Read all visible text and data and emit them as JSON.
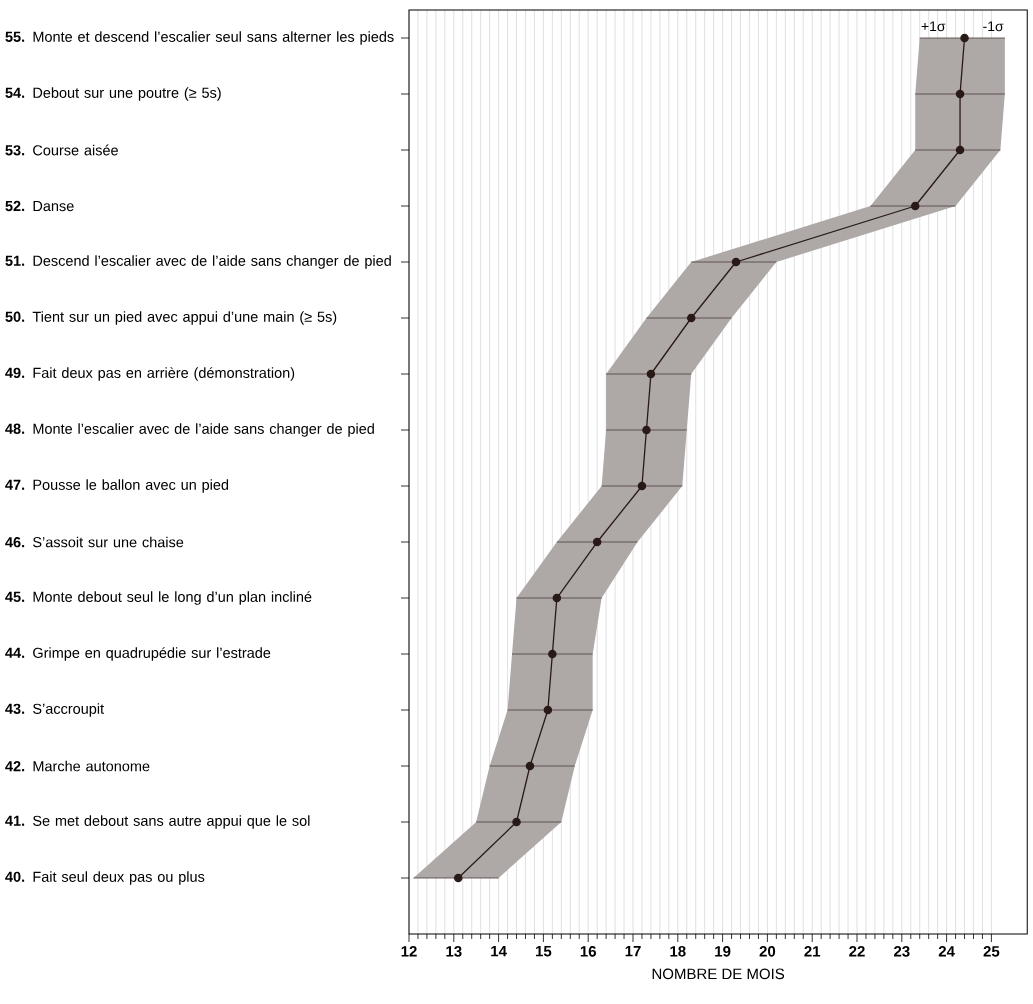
{
  "chart_data": {
    "type": "line",
    "orientation": "horizontal",
    "xlabel": "NOMBRE DE MOIS",
    "categories": [
      "**55.** Monte et descend l’escalier seul sans alterner les pieds",
      "**54.** Debout sur une poutre (≥ 5s)",
      "**53.** Course aisée",
      "**52.** Danse",
      "**51.** Descend l’escalier avec de l’aide sans changer de pied",
      "**50.** Tient sur un pied avec appui d’une main (≥ 5s)",
      "**49.** Fait deux pas en arrière (démonstration)",
      "**48.** Monte l’escalier avec de l’aide sans changer de pied",
      "**47.** Pousse le ballon avec un pied",
      "**46.** S’assoit sur une chaise",
      "**45.** Monte debout seul le long d’un plan incliné",
      "**44.** Grimpe en quadrupédie sur l’estrade",
      "**43.** S’accroupit",
      "**42.** Marche autonome",
      "**41.** Se met debout sans autre appui que le sol",
      "**40.** Fait seul deux pas ou plus"
    ],
    "series": [
      {
        "color": "#2a1a17",
        "values": [
          24.4,
          24.3,
          24.3,
          23.3,
          19.3,
          18.3,
          17.4,
          17.3,
          17.2,
          16.2,
          15.3,
          15.2,
          15.1,
          14.7,
          14.4,
          13.1
        ],
        "errors": [
          [
            23.4,
            25.3
          ],
          [
            23.3,
            25.3
          ],
          [
            23.3,
            25.2
          ],
          [
            22.3,
            24.2
          ],
          [
            18.3,
            20.2
          ],
          [
            17.3,
            19.2
          ],
          [
            16.4,
            18.3
          ],
          [
            16.4,
            18.2
          ],
          [
            16.3,
            18.1
          ],
          [
            15.3,
            17.1
          ],
          [
            14.4,
            16.3
          ],
          [
            14.3,
            16.1
          ],
          [
            14.2,
            16.1
          ],
          [
            13.8,
            15.7
          ],
          [
            13.5,
            15.4
          ],
          [
            12.1,
            14.0
          ]
        ],
        "lower": [
          23.4,
          23.3,
          23.3,
          22.3,
          18.3,
          17.3,
          16.4,
          16.4,
          16.3,
          15.3,
          14.4,
          14.3,
          14.2,
          13.8,
          13.5,
          12.1
        ],
        "upper": [
          25.3,
          25.3,
          25.2,
          24.2,
          20.2,
          19.2,
          18.3,
          18.2,
          18.1,
          17.1,
          16.3,
          16.1,
          16.1,
          15.7,
          15.4,
          14.0
        ]
      }
    ],
    "xlim": [
      12,
      25.8
    ],
    "xticks": [
      12,
      13,
      14,
      15,
      16,
      17,
      18,
      19,
      20,
      21,
      22,
      23,
      24,
      25
    ],
    "grid": "x",
    "marker": "circle",
    "line_style": "solid",
    "annotations": [
      "+1σ",
      "-1σ"
    ]
  }
}
